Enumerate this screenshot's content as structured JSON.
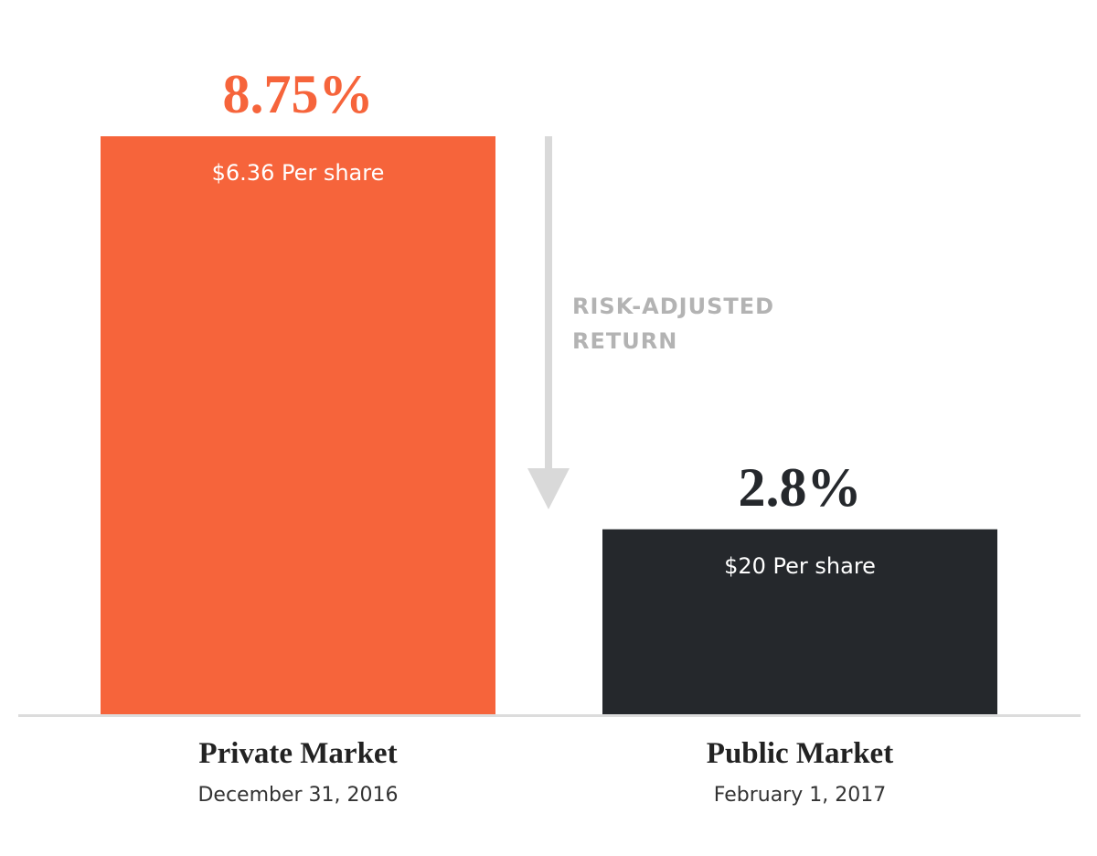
{
  "chart_data": {
    "type": "bar",
    "title": "",
    "xlabel": "",
    "ylabel": "",
    "grid": false,
    "legend": "none",
    "categories": [
      "Private Market",
      "Public Market"
    ],
    "category_dates": [
      "December 31, 2016",
      "February 1, 2017"
    ],
    "value_labels": [
      "8.75%",
      "2.8%"
    ],
    "values": [
      8.75,
      2.8
    ],
    "bar_labels": [
      "$6.36 Per share",
      "$20 Per share"
    ],
    "ylim": [
      0,
      8.75
    ],
    "annotation": {
      "lines": [
        "RISK-ADJUSTED",
        "RETURN"
      ],
      "direction": "down"
    },
    "colors": {
      "bars": [
        "#f6643b",
        "#25282c"
      ],
      "value_labels": [
        "#f6643b",
        "#25282c"
      ],
      "axis": "#dcdcdc",
      "arrow": "#d9d9d9"
    }
  }
}
